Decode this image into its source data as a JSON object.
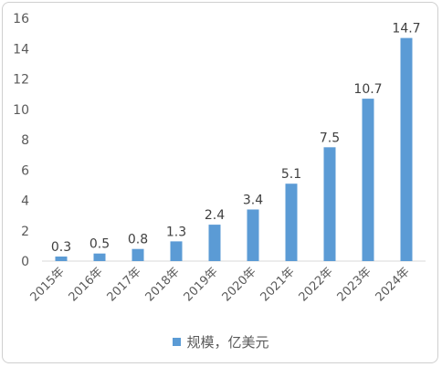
{
  "chart_data": {
    "type": "bar",
    "categories": [
      "2015年",
      "2016年",
      "2017年",
      "2018年",
      "2019年",
      "2020年",
      "2021年",
      "2022年",
      "2023年",
      "2024年"
    ],
    "series": [
      {
        "name": "规模，亿美元",
        "values": [
          0.3,
          0.5,
          0.8,
          1.3,
          2.4,
          3.4,
          5.1,
          7.5,
          10.7,
          14.7
        ],
        "labels": [
          "0.3",
          "0.5",
          "0.8",
          "1.3",
          "2.4",
          "3.4",
          "5.1",
          "7.5",
          "10.7",
          "14.7"
        ],
        "color": "#5b9bd5"
      }
    ],
    "ylim": [
      0,
      16
    ],
    "yticks": [
      "0",
      "2",
      "4",
      "6",
      "8",
      "10",
      "12",
      "14",
      "16"
    ],
    "grid": false,
    "legend_position": "bottom"
  }
}
